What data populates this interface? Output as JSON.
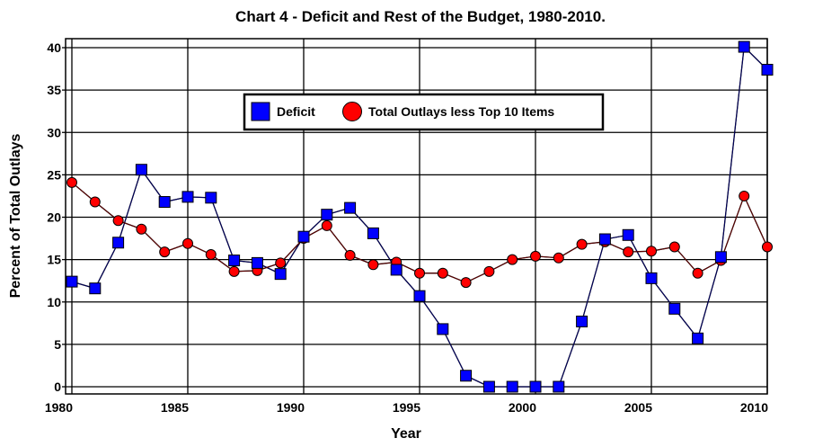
{
  "chart_data": {
    "type": "line",
    "title": "Chart 4 - Deficit and Rest of the Budget, 1980-2010.",
    "xlabel": "Year",
    "ylabel": "Percent of Total Outlays",
    "xlim": [
      1980,
      2010
    ],
    "ylim": [
      0,
      40
    ],
    "x_ticks": [
      1980,
      1985,
      1990,
      1995,
      2000,
      2005,
      2010
    ],
    "y_ticks": [
      0,
      5,
      10,
      15,
      20,
      25,
      30,
      35,
      40
    ],
    "grid": true,
    "legend_position": "top-center",
    "x": [
      1980,
      1981,
      1982,
      1983,
      1984,
      1985,
      1986,
      1987,
      1988,
      1989,
      1990,
      1991,
      1992,
      1993,
      1994,
      1995,
      1996,
      1997,
      1998,
      1999,
      2000,
      2001,
      2002,
      2003,
      2004,
      2005,
      2006,
      2007,
      2008,
      2009,
      2010
    ],
    "series": [
      {
        "name": "Deficit",
        "marker": "square",
        "color": "#0000ff",
        "values": [
          12.4,
          11.6,
          17.0,
          25.6,
          21.8,
          22.4,
          22.3,
          14.9,
          14.6,
          13.3,
          17.7,
          20.3,
          21.1,
          18.1,
          13.8,
          10.7,
          6.8,
          1.3,
          0,
          0,
          0,
          0,
          7.7,
          17.4,
          17.9,
          12.8,
          9.2,
          5.7,
          15.3,
          40.1,
          37.4
        ]
      },
      {
        "name": "Total Outlays less Top 10 Items",
        "marker": "circle",
        "color": "#ff0000",
        "values": [
          24.1,
          21.8,
          19.6,
          18.6,
          15.9,
          16.9,
          15.6,
          13.6,
          13.7,
          14.6,
          17.5,
          19.0,
          15.5,
          14.4,
          14.7,
          13.4,
          13.4,
          12.3,
          13.6,
          15.0,
          15.4,
          15.2,
          16.8,
          17.1,
          15.9,
          16.0,
          16.5,
          13.4,
          14.9,
          22.5,
          16.5
        ]
      }
    ]
  }
}
